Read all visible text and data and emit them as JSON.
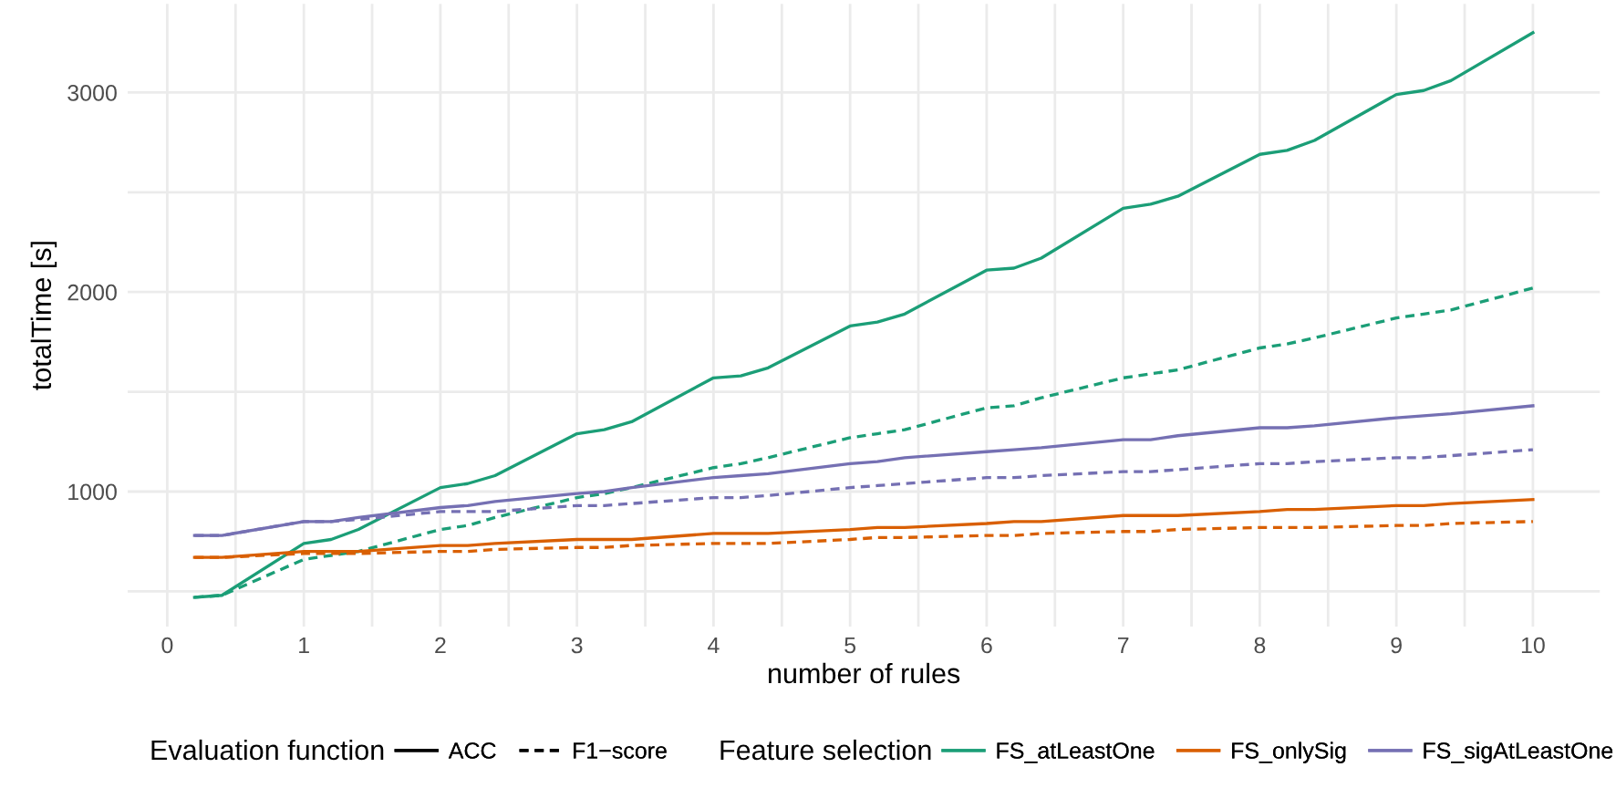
{
  "chart_data": {
    "type": "line",
    "xlabel": "number of rules",
    "ylabel": "totalTime [s]",
    "x": [
      0.2,
      0.4,
      1,
      1.2,
      1.4,
      2,
      2.2,
      2.4,
      3,
      3.2,
      3.4,
      4,
      4.2,
      4.4,
      5,
      5.2,
      5.4,
      6,
      6.2,
      6.4,
      7,
      7.2,
      7.4,
      8,
      8.2,
      8.4,
      9,
      9.2,
      9.4,
      10
    ],
    "series": [
      {
        "name": "ACC",
        "color": "#000000",
        "line_style": "solid",
        "values": [
          null,
          null,
          null,
          null,
          null,
          null,
          null,
          null,
          null,
          null,
          null,
          null,
          null,
          null,
          null,
          null,
          null,
          null,
          null,
          null,
          null,
          null,
          null,
          null,
          null,
          null,
          null,
          null,
          null,
          null
        ]
      },
      {
        "name": "F1−score",
        "color": "#000000",
        "line_style": "dashed",
        "values": [
          null,
          null,
          null,
          null,
          null,
          null,
          null,
          null,
          null,
          null,
          null,
          null,
          null,
          null,
          null,
          null,
          null,
          null,
          null,
          null,
          null,
          null,
          null,
          null,
          null,
          null,
          null,
          null,
          null,
          null
        ]
      },
      {
        "name": "FS_atLeastOne",
        "color": "#1b9e77",
        "line_style": "solid",
        "values": [
          470,
          480,
          740,
          760,
          810,
          1020,
          1040,
          1080,
          1290,
          1310,
          1350,
          1570,
          1580,
          1620,
          1830,
          1850,
          1890,
          2110,
          2120,
          2170,
          2420,
          2440,
          2480,
          2690,
          2710,
          2760,
          2990,
          3010,
          3060,
          3300
        ]
      },
      {
        "color": "#1b9e77",
        "line_style": "dashed",
        "values": [
          470,
          480,
          660,
          680,
          700,
          810,
          830,
          870,
          970,
          990,
          1020,
          1120,
          1140,
          1170,
          1270,
          1290,
          1310,
          1420,
          1430,
          1470,
          1570,
          1590,
          1610,
          1720,
          1740,
          1770,
          1870,
          1890,
          1910,
          2020
        ]
      },
      {
        "name": "FS_onlySig",
        "color": "#d95f02",
        "line_style": "solid",
        "values": [
          670,
          670,
          700,
          700,
          700,
          730,
          730,
          740,
          760,
          760,
          760,
          790,
          790,
          790,
          810,
          820,
          820,
          840,
          850,
          850,
          880,
          880,
          880,
          900,
          910,
          910,
          930,
          930,
          940,
          960
        ]
      },
      {
        "color": "#d95f02",
        "line_style": "dashed",
        "values": [
          670,
          670,
          690,
          690,
          690,
          700,
          700,
          710,
          720,
          720,
          730,
          740,
          740,
          740,
          760,
          770,
          770,
          780,
          780,
          790,
          800,
          800,
          810,
          820,
          820,
          820,
          830,
          830,
          840,
          850
        ]
      },
      {
        "name": "FS_sigAtLeastOne",
        "color": "#7570b3",
        "line_style": "solid",
        "values": [
          780,
          780,
          850,
          850,
          870,
          920,
          930,
          950,
          990,
          1000,
          1020,
          1070,
          1080,
          1090,
          1140,
          1150,
          1170,
          1200,
          1210,
          1220,
          1260,
          1260,
          1280,
          1320,
          1320,
          1330,
          1370,
          1380,
          1390,
          1430
        ]
      },
      {
        "color": "#7570b3",
        "line_style": "dashed",
        "values": [
          780,
          780,
          850,
          850,
          860,
          900,
          900,
          900,
          930,
          930,
          940,
          970,
          970,
          980,
          1020,
          1030,
          1040,
          1070,
          1070,
          1080,
          1100,
          1100,
          1110,
          1140,
          1140,
          1150,
          1170,
          1170,
          1180,
          1210
        ]
      }
    ],
    "legend_title": [
      "Evaluation function",
      "Feature selection"
    ],
    "legend": "bottom",
    "grid": true,
    "marker": "none",
    "xlim": [
      -0.29,
      10.49
    ],
    "xticks": [
      0,
      {
        "value": 0.5,
        "label": null
      },
      1,
      {
        "value": 1.5,
        "label": null
      },
      2,
      {
        "value": 2.5,
        "label": null
      },
      3,
      {
        "value": 3.5,
        "label": null
      },
      4,
      {
        "value": 4.5,
        "label": null
      },
      5,
      {
        "value": 5.5,
        "label": null
      },
      6,
      {
        "value": 6.5,
        "label": null
      },
      7,
      {
        "value": 7.5,
        "label": null
      },
      8,
      {
        "value": 8.5,
        "label": null
      },
      9,
      {
        "value": 9.5,
        "label": null
      },
      10
    ],
    "ylim": [
      324,
      3444
    ],
    "yticks": [
      {
        "value": 500,
        "label": null
      },
      1000,
      {
        "value": 1500,
        "label": null
      },
      2000,
      {
        "value": 2500,
        "label": null
      },
      3000
    ]
  }
}
